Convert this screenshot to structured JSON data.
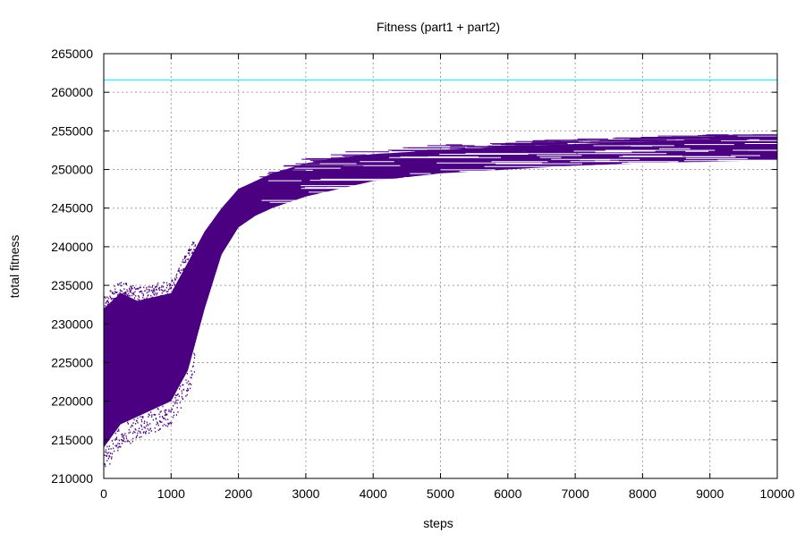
{
  "chart_data": {
    "type": "scatter",
    "title": "Fitness (part1 + part2)",
    "xlabel": "steps",
    "ylabel": "total fitness",
    "xlim": [
      0,
      10000
    ],
    "ylim": [
      210000,
      265000
    ],
    "x_ticks": [
      0,
      1000,
      2000,
      3000,
      4000,
      5000,
      6000,
      7000,
      8000,
      9000,
      10000
    ],
    "y_ticks": [
      210000,
      215000,
      220000,
      225000,
      230000,
      235000,
      240000,
      245000,
      250000,
      255000,
      260000,
      265000
    ],
    "grid": true,
    "legend": "none",
    "series": [
      {
        "color": "#4b0082",
        "description_points": {
          "x": [
            0,
            250,
            500,
            750,
            1000,
            1250,
            1500,
            1750,
            2000,
            2250,
            2500,
            3000,
            3500,
            4000,
            5000,
            6000,
            7000,
            8000,
            9000,
            10000
          ],
          "low": [
            214000,
            217000,
            218000,
            219000,
            220000,
            224000,
            232000,
            239000,
            242500,
            244000,
            245000,
            246500,
            247500,
            248500,
            249500,
            250000,
            250500,
            250800,
            251000,
            251200
          ],
          "high": [
            232000,
            234000,
            233000,
            233500,
            234000,
            238000,
            242000,
            245000,
            247500,
            248500,
            249500,
            250800,
            251500,
            252000,
            252500,
            253000,
            253300,
            253600,
            253900,
            254200
          ]
        }
      },
      {
        "color": "#00e5ee",
        "type": "hline",
        "y": 261600
      }
    ]
  }
}
